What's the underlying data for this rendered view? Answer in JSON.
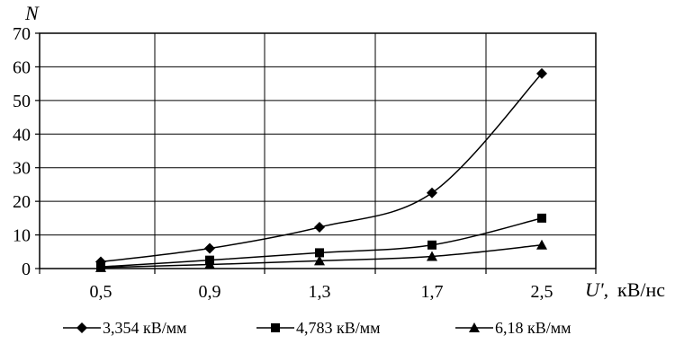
{
  "chart_data": {
    "type": "line",
    "categories": [
      "0,5",
      "0,9",
      "1,3",
      "1,7",
      "2,5"
    ],
    "yticks": [
      "0",
      "10",
      "20",
      "30",
      "40",
      "50",
      "60",
      "70"
    ],
    "ylim": [
      0,
      70
    ],
    "ylabel": "N",
    "xlabel_var": "U',",
    "xlabel_unit": "кВ/нс",
    "grid": true,
    "legend_position": "bottom",
    "series": [
      {
        "name": "3,354 кВ/мм",
        "marker": "diamond",
        "values": [
          2,
          6,
          12.3,
          22.5,
          58
        ]
      },
      {
        "name": "4,783 кВ/мм",
        "marker": "square",
        "values": [
          0.5,
          2.5,
          4.7,
          7,
          15
        ]
      },
      {
        "name": "6,18 кВ/мм",
        "marker": "triangle",
        "values": [
          0.3,
          1.2,
          2.3,
          3.6,
          7
        ]
      }
    ],
    "colors": {
      "line": "#000000",
      "grid": "#000000"
    }
  }
}
